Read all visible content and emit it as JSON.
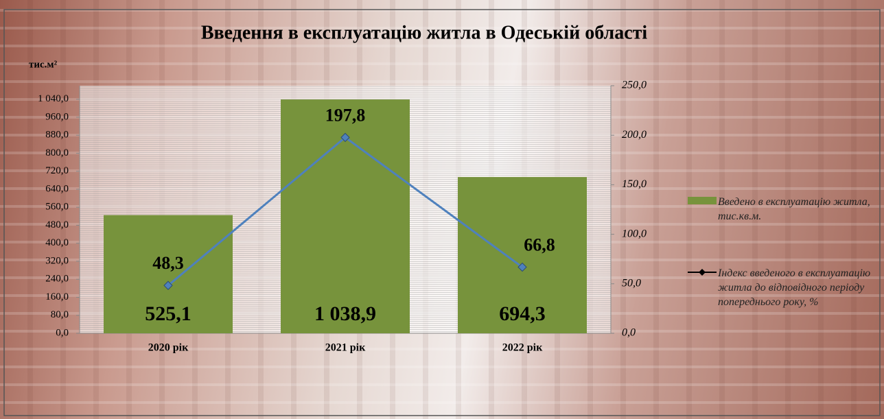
{
  "chart_data": {
    "type": "bar",
    "title": "Введення в експлуатацію житла в Одеській області",
    "y_label": "тис.м²",
    "categories": [
      "2020 рік",
      "2021 рік",
      "2022 рік"
    ],
    "series": [
      {
        "name": "Введено в експлуатацію житла, тис.кв.м.",
        "type": "bar",
        "color": "#77933c",
        "values": [
          525.1,
          1038.9,
          694.3
        ],
        "value_labels": [
          "525,1",
          "1 038,9",
          "694,3"
        ]
      },
      {
        "name": "Індекс введеного в експлуатацію житла до відповідного періоду попереднього року, %",
        "type": "line",
        "axis": "y2",
        "color": "#4f81bd",
        "values": [
          48.3,
          197.8,
          66.8
        ],
        "value_labels": [
          "48,3",
          "197,8",
          "66,8"
        ]
      }
    ],
    "ylim": [
      0,
      1100
    ],
    "yticks": [
      {
        "value": 0,
        "label": "0,0"
      },
      {
        "value": 80,
        "label": "80,0"
      },
      {
        "value": 160,
        "label": "160,0"
      },
      {
        "value": 240,
        "label": "240,0"
      },
      {
        "value": 320,
        "label": "320,0"
      },
      {
        "value": 400,
        "label": "400,0"
      },
      {
        "value": 480,
        "label": "480,0"
      },
      {
        "value": 560,
        "label": "560,0"
      },
      {
        "value": 640,
        "label": "640,0"
      },
      {
        "value": 720,
        "label": "720,0"
      },
      {
        "value": 800,
        "label": "800,0"
      },
      {
        "value": 880,
        "label": "880,0"
      },
      {
        "value": 960,
        "label": "960,0"
      },
      {
        "value": 1040,
        "label": "1 040,0"
      }
    ],
    "y2lim": [
      0,
      250
    ],
    "y2ticks": [
      {
        "value": 0,
        "label": "0,0"
      },
      {
        "value": 50,
        "label": "50,0"
      },
      {
        "value": 100,
        "label": "100,0"
      },
      {
        "value": 150,
        "label": "150,0"
      },
      {
        "value": 200,
        "label": "200,0"
      },
      {
        "value": 250,
        "label": "250,0"
      }
    ]
  }
}
